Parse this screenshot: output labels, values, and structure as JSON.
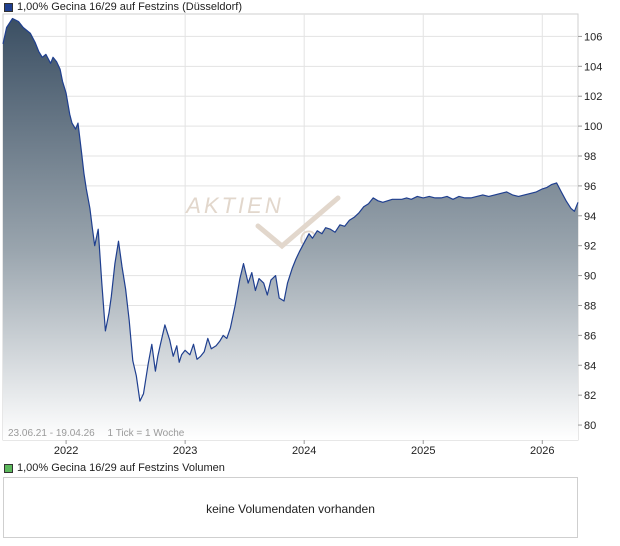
{
  "legend": {
    "price_label": "1,00% Gecina 16/29 auf Festzins (Düsseldorf)",
    "price_color": "#1f3f8f",
    "volume_label": "1,00% Gecina 16/29 auf Festzins Volumen",
    "volume_color": "#5cb85c"
  },
  "range": {
    "dates": "23.06.21 - 19.04.26",
    "tick": "1 Tick = 1 Woche"
  },
  "watermark": {
    "word1": "AKTIEN",
    "word2": "CHECK"
  },
  "volume": {
    "message": "keine Volumendaten vorhanden"
  },
  "chart_data": {
    "type": "area",
    "title": "1,00% Gecina 16/29 auf Festzins (Düsseldorf)",
    "xlabel": "",
    "ylabel": "",
    "xlim": [
      2021.47,
      2026.3
    ],
    "ylim": [
      79,
      107.5
    ],
    "yticks": [
      80,
      82,
      84,
      86,
      88,
      90,
      92,
      94,
      96,
      98,
      100,
      102,
      104,
      106
    ],
    "xticks": [
      {
        "value": 2022,
        "label": "2022"
      },
      {
        "value": 2023,
        "label": "2023"
      },
      {
        "value": 2024,
        "label": "2024"
      },
      {
        "value": 2025,
        "label": "2025"
      },
      {
        "value": 2026,
        "label": "2026"
      }
    ],
    "grid": true,
    "line_color": "#1f3f8f",
    "fill_top": "#3b4f63",
    "fill_bottom": "#ffffff",
    "x": [
      2021.47,
      2021.5,
      2021.55,
      2021.6,
      2021.64,
      2021.7,
      2021.74,
      2021.77,
      2021.8,
      2021.83,
      2021.87,
      2021.89,
      2021.92,
      2021.95,
      2021.97,
      2022.0,
      2022.03,
      2022.05,
      2022.08,
      2022.1,
      2022.13,
      2022.15,
      2022.17,
      2022.2,
      2022.22,
      2022.24,
      2022.27,
      2022.3,
      2022.33,
      2022.36,
      2022.38,
      2022.41,
      2022.44,
      2022.47,
      2022.5,
      2022.53,
      2022.56,
      2022.59,
      2022.62,
      2022.65,
      2022.69,
      2022.72,
      2022.75,
      2022.77,
      2022.79,
      2022.83,
      2022.87,
      2022.9,
      2022.93,
      2022.95,
      2022.97,
      2023.0,
      2023.04,
      2023.07,
      2023.1,
      2023.13,
      2023.16,
      2023.19,
      2023.22,
      2023.26,
      2023.29,
      2023.32,
      2023.35,
      2023.38,
      2023.42,
      2023.46,
      2023.49,
      2023.53,
      2023.56,
      2023.59,
      2023.62,
      2023.66,
      2023.69,
      2023.72,
      2023.76,
      2023.79,
      2023.83,
      2023.86,
      2023.9,
      2023.93,
      2023.96,
      2024.0,
      2024.04,
      2024.07,
      2024.11,
      2024.15,
      2024.18,
      2024.22,
      2024.26,
      2024.3,
      2024.34,
      2024.38,
      2024.42,
      2024.46,
      2024.5,
      2024.54,
      2024.58,
      2024.62,
      2024.66,
      2024.7,
      2024.74,
      2024.78,
      2024.82,
      2024.86,
      2024.9,
      2024.95,
      2025.0,
      2025.05,
      2025.1,
      2025.15,
      2025.2,
      2025.25,
      2025.3,
      2025.35,
      2025.4,
      2025.45,
      2025.5,
      2025.55,
      2025.6,
      2025.65,
      2025.7,
      2025.75,
      2025.8,
      2025.85,
      2025.9,
      2025.95,
      2026.0,
      2026.04,
      2026.08,
      2026.12,
      2026.16,
      2026.2,
      2026.24,
      2026.27,
      2026.3
    ],
    "y": [
      105.5,
      106.6,
      107.2,
      107.0,
      106.6,
      106.2,
      105.6,
      105.0,
      104.6,
      104.8,
      104.2,
      104.6,
      104.3,
      103.8,
      103.0,
      102.2,
      100.8,
      100.2,
      99.8,
      100.2,
      98.2,
      96.8,
      95.8,
      94.5,
      93.2,
      92.0,
      93.1,
      89.5,
      86.3,
      87.5,
      88.6,
      90.8,
      92.3,
      90.6,
      89.1,
      87.0,
      84.3,
      83.3,
      81.6,
      82.1,
      84.1,
      85.4,
      83.6,
      84.6,
      85.3,
      86.7,
      85.7,
      84.6,
      85.3,
      84.2,
      84.7,
      85.0,
      84.7,
      85.4,
      84.4,
      84.6,
      84.9,
      85.8,
      85.1,
      85.3,
      85.6,
      86.0,
      85.8,
      86.5,
      88.0,
      89.8,
      90.8,
      89.5,
      90.2,
      89.0,
      89.8,
      89.5,
      88.7,
      89.7,
      90.0,
      88.5,
      88.3,
      89.5,
      90.5,
      91.1,
      91.6,
      92.2,
      92.8,
      92.5,
      93.0,
      92.8,
      93.2,
      93.1,
      92.9,
      93.4,
      93.3,
      93.7,
      93.9,
      94.2,
      94.6,
      94.8,
      95.2,
      95.0,
      94.9,
      95.0,
      95.1,
      95.1,
      95.1,
      95.2,
      95.1,
      95.3,
      95.2,
      95.3,
      95.2,
      95.2,
      95.3,
      95.1,
      95.3,
      95.2,
      95.2,
      95.3,
      95.4,
      95.3,
      95.4,
      95.5,
      95.6,
      95.4,
      95.3,
      95.4,
      95.5,
      95.6,
      95.8,
      95.9,
      96.1,
      96.2,
      95.6,
      95.0,
      94.5,
      94.3,
      94.9
    ]
  }
}
